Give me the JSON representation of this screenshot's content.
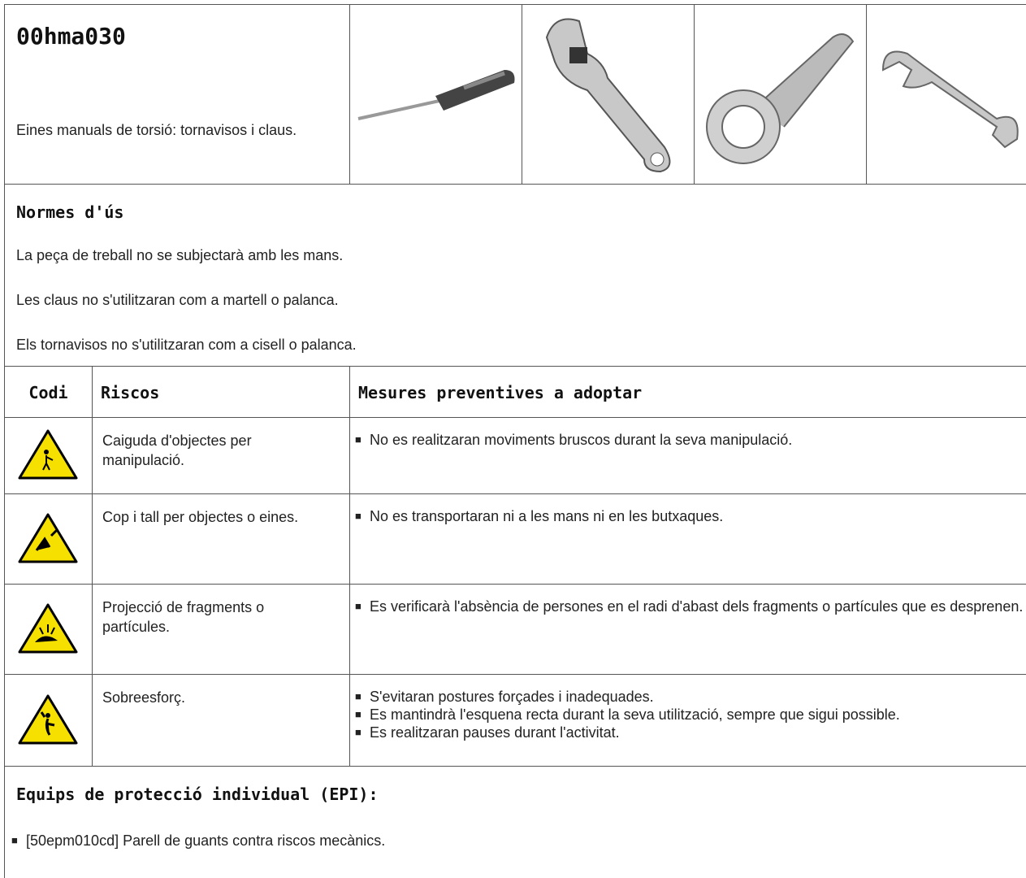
{
  "header": {
    "code": "00hma030",
    "description": "Eines manuals de torsió: tornavisos i claus."
  },
  "usage_rules": {
    "title": "Normes d'ús",
    "items": [
      "La peça de treball no se subjectarà amb les mans.",
      "Les claus no s'utilitzaran com a martell o palanca.",
      "Els tornavisos no s'utilitzaran com a cisell o palanca."
    ]
  },
  "risks_table": {
    "columns": [
      "Codi",
      "Riscos",
      "Mesures preventives a adoptar"
    ],
    "rows": [
      {
        "risk": "Caiguda d'objectes per manipulació.",
        "measures": [
          "No es realitzaran moviments bruscos durant la seva manipulació."
        ]
      },
      {
        "risk": "Cop i tall per objectes o eines.",
        "measures": [
          "No es transportaran ni a les mans ni en les butxaques."
        ]
      },
      {
        "risk": "Projecció de fragments o partícules.",
        "measures": [
          "Es verificarà l'absència de persones en el radi d'abast dels fragments o partícules que es desprenen."
        ]
      },
      {
        "risk": "Sobreesforç.",
        "measures": [
          "S'evitaran postures forçades i inadequades.",
          "Es mantindrà l'esquena recta durant la seva utilització, sempre que sigui possible.",
          "Es realitzaran pauses durant l'activitat."
        ]
      }
    ]
  },
  "ppe": {
    "title": "Equips de protecció individual (EPI):",
    "items": [
      "[50epm010cd] Parell de guants contra riscos mecànics."
    ]
  }
}
